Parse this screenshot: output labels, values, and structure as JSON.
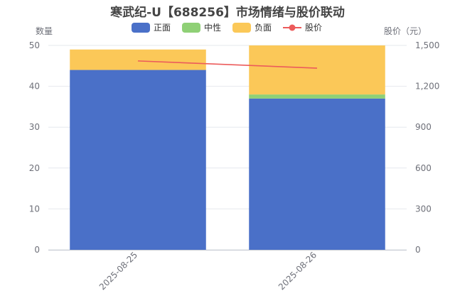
{
  "chart_data": {
    "type": "bar",
    "stacked": true,
    "title": "寒武纪-U【688256】市场情绪与股价联动",
    "categories": [
      "2025-08-25",
      "2025-08-26"
    ],
    "series": [
      {
        "name": "正面",
        "type": "bar",
        "axis": "left",
        "color": "#4a70c8",
        "values": [
          44,
          37
        ]
      },
      {
        "name": "中性",
        "type": "bar",
        "axis": "left",
        "color": "#8fd076",
        "values": [
          0,
          1
        ]
      },
      {
        "name": "负面",
        "type": "bar",
        "axis": "left",
        "color": "#fbc858",
        "values": [
          5,
          12
        ]
      },
      {
        "name": "股价",
        "type": "line",
        "axis": "right",
        "color": "#ec5b5b",
        "values": [
          1386,
          1333
        ]
      }
    ],
    "ylabel": "数量",
    "ylabel_right": "股价（元）",
    "ylim": [
      0,
      50
    ],
    "ylim_right": [
      0,
      1500
    ],
    "yticks": [
      "0",
      "10",
      "20",
      "30",
      "40",
      "50"
    ],
    "yticks_right": [
      "0",
      "300",
      "600",
      "900",
      "1,200",
      "1,500"
    ],
    "legend_position": "top-center",
    "grid": true
  }
}
